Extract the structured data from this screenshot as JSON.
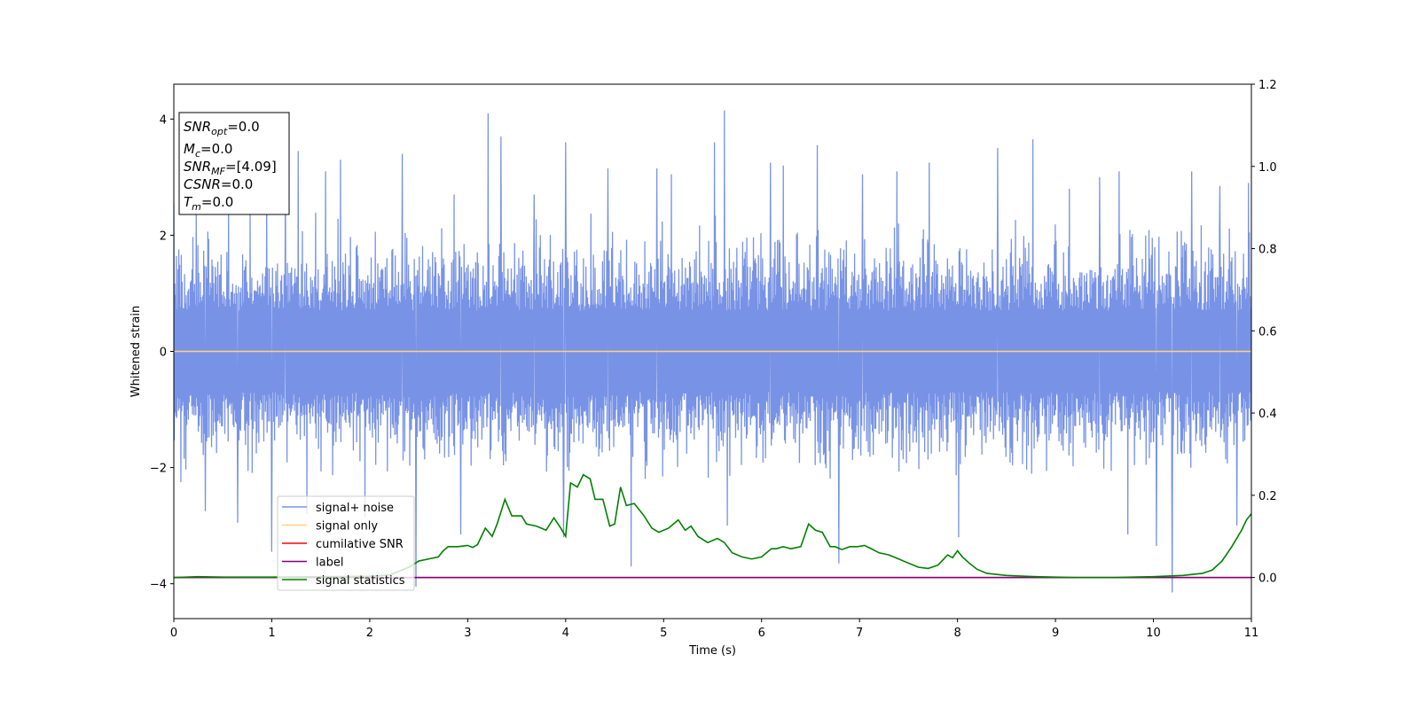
{
  "chart_data": {
    "type": "line",
    "xlabel": "Time (s)",
    "ylabel": "Whitened strain",
    "xlim": [
      0,
      11
    ],
    "ylim_left": [
      -4.6,
      4.6
    ],
    "ylim_right": [
      -0.1,
      1.2
    ],
    "x_ticks": [
      "0",
      "1",
      "2",
      "3",
      "4",
      "5",
      "6",
      "7",
      "8",
      "9",
      "10",
      "11"
    ],
    "y_ticks_left": [
      "−4",
      "−2",
      "0",
      "2",
      "4"
    ],
    "y_ticks_right": [
      "0.0",
      "0.2",
      "0.4",
      "0.6",
      "0.8",
      "1.0",
      "1.2"
    ],
    "info_box": [
      {
        "base": "SNR",
        "sub": "opt",
        "rest": "=0.0"
      },
      {
        "base": "M",
        "sub": "c",
        "rest": "=0.0"
      },
      {
        "base": "SNR",
        "sub": "MF",
        "rest": "=[4.09]"
      },
      {
        "base": "CSNR",
        "sub": "",
        "rest": "=0.0"
      },
      {
        "base": "T",
        "sub": "m",
        "rest": "=0.0"
      }
    ],
    "legend": {
      "placement": "lower-left",
      "entries": [
        {
          "label": "signal+ noise",
          "color": "#7893e6"
        },
        {
          "label": "signal only",
          "color": "#ffd27a"
        },
        {
          "label": "cumilative SNR",
          "color": "#ff0000"
        },
        {
          "label": "label",
          "color": "#800080"
        },
        {
          "label": "signal statistics",
          "color": "#008000"
        }
      ]
    },
    "series": [
      {
        "name": "signal+ noise",
        "axis": "left",
        "color": "#7893e6",
        "kind": "noise",
        "x_range": [
          0,
          11
        ],
        "typical_range": [
          -1.6,
          1.8
        ],
        "spike_peaks": [
          {
            "x": 0.0,
            "y": 2.55
          },
          {
            "x": 0.07,
            "y": -2.25
          },
          {
            "x": 0.23,
            "y": 2.45
          },
          {
            "x": 0.32,
            "y": -2.75
          },
          {
            "x": 0.56,
            "y": 2.6
          },
          {
            "x": 0.65,
            "y": -2.95
          },
          {
            "x": 0.95,
            "y": 2.9
          },
          {
            "x": 1.0,
            "y": -3.45
          },
          {
            "x": 1.14,
            "y": 2.95
          },
          {
            "x": 1.27,
            "y": 3.45
          },
          {
            "x": 1.36,
            "y": -2.8
          },
          {
            "x": 1.55,
            "y": 3.1
          },
          {
            "x": 1.7,
            "y": 3.3
          },
          {
            "x": 1.95,
            "y": -2.85
          },
          {
            "x": 2.33,
            "y": 3.4
          },
          {
            "x": 2.47,
            "y": -4.05
          },
          {
            "x": 2.86,
            "y": 2.7
          },
          {
            "x": 2.93,
            "y": -3.15
          },
          {
            "x": 3.21,
            "y": 4.1
          },
          {
            "x": 3.34,
            "y": 3.7
          },
          {
            "x": 3.68,
            "y": 2.7
          },
          {
            "x": 3.98,
            "y": -3.2
          },
          {
            "x": 4.0,
            "y": 3.6
          },
          {
            "x": 4.43,
            "y": 3.15
          },
          {
            "x": 4.67,
            "y": -3.7
          },
          {
            "x": 4.93,
            "y": 3.15
          },
          {
            "x": 5.08,
            "y": 3.05
          },
          {
            "x": 5.52,
            "y": 3.6
          },
          {
            "x": 5.62,
            "y": 4.15
          },
          {
            "x": 5.65,
            "y": -3.0
          },
          {
            "x": 6.09,
            "y": 3.25
          },
          {
            "x": 6.22,
            "y": 3.2
          },
          {
            "x": 6.57,
            "y": 3.55
          },
          {
            "x": 6.79,
            "y": -3.65
          },
          {
            "x": 7.03,
            "y": 3.05
          },
          {
            "x": 7.38,
            "y": 3.1
          },
          {
            "x": 7.71,
            "y": 3.25
          },
          {
            "x": 8.01,
            "y": -3.2
          },
          {
            "x": 8.41,
            "y": 3.5
          },
          {
            "x": 8.77,
            "y": 3.65
          },
          {
            "x": 9.14,
            "y": 2.8
          },
          {
            "x": 9.45,
            "y": 3.0
          },
          {
            "x": 9.65,
            "y": 3.1
          },
          {
            "x": 9.74,
            "y": -3.15
          },
          {
            "x": 10.03,
            "y": -3.35
          },
          {
            "x": 10.19,
            "y": -4.15
          },
          {
            "x": 10.39,
            "y": 3.1
          },
          {
            "x": 10.68,
            "y": 2.85
          },
          {
            "x": 10.85,
            "y": -3.0
          },
          {
            "x": 10.97,
            "y": 2.9
          }
        ]
      },
      {
        "name": "signal only",
        "axis": "left",
        "color": "#ffd27a",
        "x": [
          0,
          11
        ],
        "y": [
          0,
          0
        ]
      },
      {
        "name": "cumilative SNR",
        "axis": "right",
        "color": "#ff0000",
        "x": [
          0,
          11
        ],
        "y": [
          0,
          0
        ]
      },
      {
        "name": "label",
        "axis": "right",
        "color": "#800080",
        "x": [
          0,
          11
        ],
        "y": [
          0,
          0
        ]
      },
      {
        "name": "signal statistics",
        "axis": "right",
        "color": "#008000",
        "x": [
          0,
          0.25,
          0.5,
          1.0,
          1.5,
          2.0,
          2.2,
          2.4,
          2.5,
          2.6,
          2.7,
          2.75,
          2.8,
          2.9,
          3.0,
          3.05,
          3.1,
          3.18,
          3.25,
          3.3,
          3.38,
          3.45,
          3.55,
          3.6,
          3.7,
          3.8,
          3.88,
          3.95,
          4.0,
          4.05,
          4.12,
          4.18,
          4.25,
          4.3,
          4.38,
          4.45,
          4.5,
          4.56,
          4.62,
          4.7,
          4.8,
          4.88,
          4.95,
          5.05,
          5.15,
          5.22,
          5.28,
          5.35,
          5.45,
          5.55,
          5.62,
          5.7,
          5.8,
          5.9,
          6.0,
          6.1,
          6.15,
          6.22,
          6.3,
          6.4,
          6.48,
          6.55,
          6.62,
          6.7,
          6.75,
          6.82,
          6.9,
          6.98,
          7.05,
          7.12,
          7.2,
          7.3,
          7.45,
          7.6,
          7.7,
          7.8,
          7.9,
          7.95,
          8.0,
          8.05,
          8.12,
          8.2,
          8.3,
          8.5,
          8.8,
          9.2,
          9.6,
          10.0,
          10.3,
          10.5,
          10.6,
          10.7,
          10.8,
          10.9,
          10.95,
          11.0
        ],
        "y": [
          0.0,
          0.002,
          0.001,
          0.001,
          0.002,
          0.003,
          0.006,
          0.025,
          0.04,
          0.045,
          0.05,
          0.065,
          0.075,
          0.075,
          0.078,
          0.073,
          0.08,
          0.12,
          0.1,
          0.13,
          0.19,
          0.15,
          0.15,
          0.13,
          0.125,
          0.115,
          0.145,
          0.12,
          0.1,
          0.23,
          0.22,
          0.25,
          0.24,
          0.19,
          0.19,
          0.125,
          0.13,
          0.22,
          0.175,
          0.18,
          0.15,
          0.12,
          0.11,
          0.12,
          0.14,
          0.115,
          0.125,
          0.1,
          0.085,
          0.095,
          0.085,
          0.06,
          0.05,
          0.045,
          0.05,
          0.07,
          0.07,
          0.075,
          0.07,
          0.075,
          0.13,
          0.115,
          0.11,
          0.075,
          0.075,
          0.068,
          0.075,
          0.075,
          0.078,
          0.07,
          0.06,
          0.055,
          0.04,
          0.025,
          0.022,
          0.03,
          0.055,
          0.048,
          0.065,
          0.05,
          0.035,
          0.02,
          0.01,
          0.005,
          0.002,
          0.0,
          0.0,
          0.002,
          0.005,
          0.01,
          0.018,
          0.04,
          0.075,
          0.115,
          0.14,
          0.155
        ]
      }
    ]
  }
}
